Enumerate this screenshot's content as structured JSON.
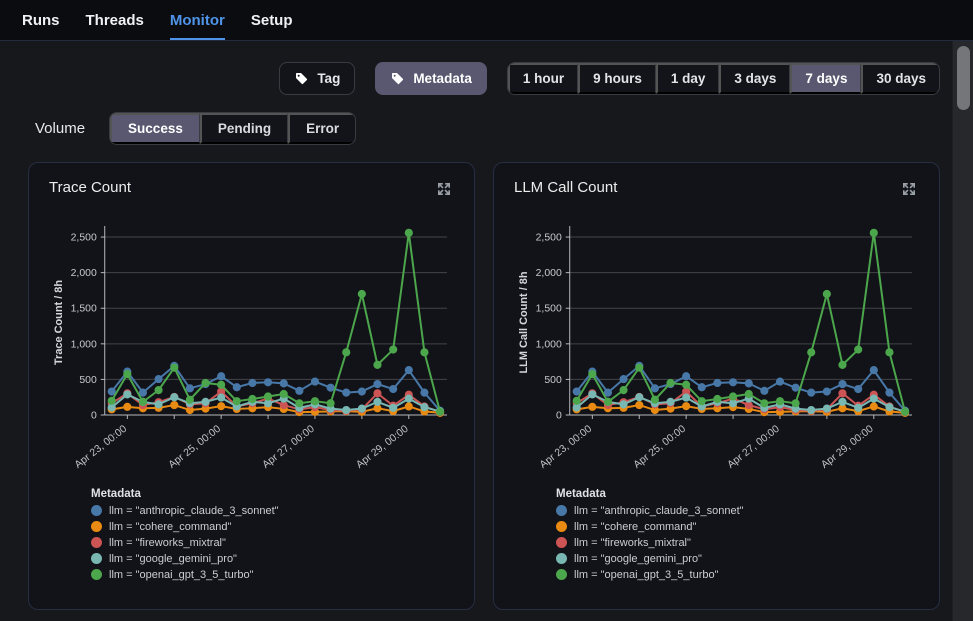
{
  "nav": {
    "items": [
      {
        "label": "Runs",
        "active": false
      },
      {
        "label": "Threads",
        "active": false
      },
      {
        "label": "Monitor",
        "active": true
      },
      {
        "label": "Setup",
        "active": false
      }
    ],
    "active_color": "#4f94e8"
  },
  "toolbar": {
    "tag_button": {
      "label": "Tag",
      "icon": "tag-icon",
      "selected": false
    },
    "metadata_button": {
      "label": "Metadata",
      "icon": "tag-icon",
      "selected": true
    },
    "time_ranges": {
      "options": [
        "1 hour",
        "9 hours",
        "1 day",
        "3 days",
        "7 days",
        "30 days"
      ],
      "selected": "7 days"
    }
  },
  "volume": {
    "label": "Volume",
    "options": [
      "Success",
      "Pending",
      "Error"
    ],
    "selected": "Success"
  },
  "colors": {
    "selected_control_bg": "#5a5770",
    "accent_blue": "#4f94e8",
    "card_bg": "#121318",
    "page_bg": "#17181c",
    "nav_bg": "#0b0c0f",
    "grid_line": "#7e8085",
    "axis_line": "#b6b8bd"
  },
  "chart_data": [
    {
      "type": "line",
      "title": "Trace Count",
      "ylabel": "Trace Count / 8h",
      "ylim": [
        0,
        2600
      ],
      "y_ticks": [
        0,
        500,
        1000,
        1500,
        2000,
        2500
      ],
      "n_points": 22,
      "point_interval": "8h",
      "x_tick_indices": [
        1,
        4,
        7,
        10,
        13,
        16,
        19
      ],
      "x_tick_labels": [
        {
          "index": 1,
          "label": "Apr 23, 00:00"
        },
        {
          "index": 7,
          "label": "Apr 25, 00:00"
        },
        {
          "index": 13,
          "label": "Apr 27, 00:00"
        },
        {
          "index": 19,
          "label": "Apr 29, 00:00"
        }
      ],
      "grid": true,
      "legend_title": "Metadata",
      "legend_position": "bottom-left",
      "series": [
        {
          "name": "llm = \"anthropic_claude_3_sonnet\"",
          "color": "#4878a8",
          "values": [
            330,
            610,
            315,
            505,
            690,
            375,
            435,
            545,
            390,
            450,
            460,
            445,
            340,
            470,
            385,
            315,
            330,
            435,
            365,
            630,
            315,
            60
          ]
        },
        {
          "name": "llm = \"cohere_command\"",
          "color": "#e98a12",
          "values": [
            80,
            115,
            95,
            100,
            140,
            70,
            90,
            125,
            85,
            95,
            110,
            85,
            40,
            45,
            50,
            55,
            45,
            95,
            55,
            120,
            50,
            30
          ]
        },
        {
          "name": "llm = \"fireworks_mixtral\"",
          "color": "#cc5454",
          "values": [
            165,
            305,
            140,
            180,
            255,
            150,
            165,
            330,
            120,
            165,
            230,
            140,
            80,
            110,
            70,
            60,
            80,
            305,
            130,
            285,
            120,
            40
          ]
        },
        {
          "name": "llm = \"google_gemini_pro\"",
          "color": "#79b8b2",
          "values": [
            105,
            290,
            185,
            150,
            250,
            165,
            185,
            245,
            120,
            185,
            165,
            230,
            100,
            150,
            90,
            70,
            90,
            185,
            100,
            230,
            110,
            50
          ]
        },
        {
          "name": "llm = \"openai_gpt_3_5_turbo\"",
          "color": "#4ca64c",
          "values": [
            200,
            575,
            185,
            350,
            665,
            215,
            450,
            425,
            195,
            225,
            260,
            295,
            165,
            195,
            165,
            880,
            1700,
            705,
            920,
            2560,
            880,
            45
          ]
        }
      ]
    },
    {
      "type": "line",
      "title": "LLM Call Count",
      "ylabel": "LLM Call Count / 8h",
      "ylim": [
        0,
        2600
      ],
      "y_ticks": [
        0,
        500,
        1000,
        1500,
        2000,
        2500
      ],
      "n_points": 22,
      "point_interval": "8h",
      "x_tick_indices": [
        1,
        4,
        7,
        10,
        13,
        16,
        19
      ],
      "x_tick_labels": [
        {
          "index": 1,
          "label": "Apr 23, 00:00"
        },
        {
          "index": 7,
          "label": "Apr 25, 00:00"
        },
        {
          "index": 13,
          "label": "Apr 27, 00:00"
        },
        {
          "index": 19,
          "label": "Apr 29, 00:00"
        }
      ],
      "grid": true,
      "legend_title": "Metadata",
      "legend_position": "bottom-left",
      "series": [
        {
          "name": "llm = \"anthropic_claude_3_sonnet\"",
          "color": "#4878a8",
          "values": [
            330,
            610,
            315,
            505,
            690,
            375,
            435,
            545,
            390,
            450,
            460,
            445,
            340,
            470,
            385,
            315,
            330,
            435,
            365,
            630,
            315,
            60
          ]
        },
        {
          "name": "llm = \"cohere_command\"",
          "color": "#e98a12",
          "values": [
            80,
            115,
            95,
            100,
            140,
            70,
            90,
            125,
            85,
            95,
            110,
            85,
            40,
            45,
            50,
            55,
            45,
            95,
            55,
            120,
            50,
            30
          ]
        },
        {
          "name": "llm = \"fireworks_mixtral\"",
          "color": "#cc5454",
          "values": [
            165,
            305,
            140,
            180,
            255,
            150,
            165,
            330,
            120,
            165,
            230,
            140,
            80,
            110,
            70,
            60,
            80,
            305,
            130,
            285,
            120,
            40
          ]
        },
        {
          "name": "llm = \"google_gemini_pro\"",
          "color": "#79b8b2",
          "values": [
            105,
            290,
            185,
            150,
            250,
            165,
            185,
            245,
            120,
            185,
            165,
            230,
            100,
            150,
            90,
            70,
            90,
            185,
            100,
            230,
            110,
            50
          ]
        },
        {
          "name": "llm = \"openai_gpt_3_5_turbo\"",
          "color": "#4ca64c",
          "values": [
            200,
            575,
            185,
            350,
            665,
            215,
            450,
            425,
            195,
            225,
            260,
            295,
            165,
            195,
            165,
            880,
            1700,
            705,
            920,
            2560,
            880,
            45
          ]
        }
      ]
    }
  ],
  "scrollbar": {
    "visible": true
  }
}
